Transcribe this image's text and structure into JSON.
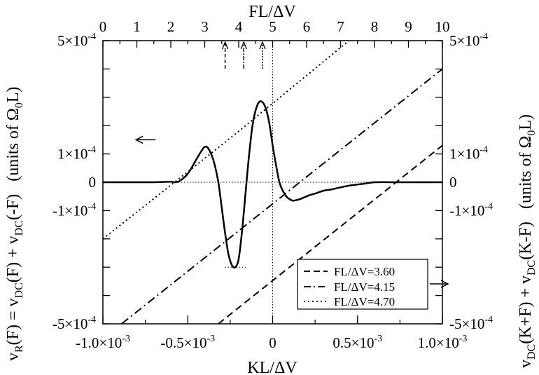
{
  "chart_data": {
    "type": "line",
    "title": "",
    "bottom_axis": {
      "label": "KL/ΔV",
      "range": [
        -0.001,
        0.001
      ],
      "ticks": [
        -0.001,
        -0.0005,
        0,
        0.0005,
        0.001
      ],
      "tick_labels": [
        "-1.0×10",
        "-0.5×10",
        "0",
        "0.5×10",
        "1.0×10"
      ],
      "tick_exponents": [
        "-3",
        "-3",
        "",
        "-3",
        "-3"
      ]
    },
    "top_axis": {
      "label": "FL/ΔV",
      "range": [
        0,
        10
      ],
      "ticks": [
        0,
        1,
        2,
        3,
        4,
        5,
        6,
        7,
        8,
        9,
        10
      ],
      "tick_labels": [
        "0",
        "1",
        "2",
        "3",
        "4",
        "5",
        "6",
        "7",
        "8",
        "9",
        "10"
      ]
    },
    "left_axis": {
      "label_parts": [
        "v",
        "R",
        "(F) = v",
        "DC",
        "(F) + v",
        "DC",
        "(-F)   (units of Ω",
        "0",
        "L)"
      ],
      "range": [
        -0.0005,
        0.0005
      ],
      "ticks": [
        0.0005,
        0.0001,
        0,
        -0.0001,
        -0.0005
      ],
      "tick_labels": [
        "5×10",
        "1×10",
        "0",
        "-1×10",
        "-5×10"
      ],
      "tick_exponents": [
        "-4",
        "-4",
        "",
        "-4",
        "-4"
      ]
    },
    "right_axis": {
      "label_parts": [
        "v",
        "DC",
        "(K+F) + v",
        "DC",
        "(K-F)   (units of Ω",
        "0",
        "L)"
      ],
      "range": [
        -0.0005,
        0.0005
      ],
      "ticks": [
        0.0005,
        0.0001,
        0,
        -0.0001,
        -0.0005
      ],
      "tick_labels": [
        "5×10",
        "1×10",
        "0",
        "-1×10",
        "-5×10"
      ],
      "tick_exponents": [
        "-4",
        "-4",
        "",
        "-4",
        "-4"
      ]
    },
    "solid_curve": {
      "x": [
        -0.001,
        -0.0008,
        -0.0007,
        -0.00065,
        -0.0006,
        -0.00058,
        -0.00055,
        -0.0005,
        -0.00045,
        -0.00042,
        -0.0004,
        -0.00038,
        -0.00035,
        -0.00032,
        -0.0003,
        -0.00028,
        -0.00026,
        -0.00024,
        -0.00022,
        -0.0002,
        -0.00018,
        -0.00016,
        -0.00014,
        -0.00012,
        -0.0001,
        -8e-05,
        -6e-05,
        -4e-05,
        -2e-05,
        0,
        2e-05,
        4e-05,
        6e-05,
        8e-05,
        0.0001,
        0.00012,
        0.00014,
        0.00016,
        0.00018,
        0.0002,
        0.00022,
        0.00025,
        0.0003,
        0.00035,
        0.0004,
        0.00045,
        0.0005,
        0.00055,
        0.0006,
        0.0007,
        0.0008,
        0.0009,
        0.001
      ],
      "y": [
        0,
        0,
        0,
        1e-06,
        2e-06,
        0,
        4e-06,
        3e-05,
        8e-05,
        0.00011,
        0.000125,
        0.00012,
        8e-05,
        0,
        -9e-05,
        -0.00018,
        -0.000255,
        -0.000293,
        -0.0003,
        -0.00027,
        -0.00017,
        -4e-05,
        9e-05,
        0.000195,
        0.000255,
        0.000283,
        0.000283,
        0.00026,
        0.00021,
        0.00013,
        6e-05,
        0,
        -3e-05,
        -5e-05,
        -6e-05,
        -6.5e-05,
        -6.3e-05,
        -6e-05,
        -5.5e-05,
        -5e-05,
        -4.5e-05,
        -4e-05,
        -3e-05,
        -2.5e-05,
        -1.8e-05,
        -1.2e-05,
        -8e-06,
        -4e-06,
        0,
        0,
        0,
        0,
        0
      ]
    },
    "series": [
      {
        "name": "FL/ΔV=3.60",
        "style": "dashed",
        "x": [
          -0.00032,
          0.001
        ],
        "y": [
          -0.0005,
          0.00013
        ]
      },
      {
        "name": "FL/ΔV=4.15",
        "style": "dash-dot",
        "x": [
          -0.00089,
          0.001
        ],
        "y": [
          -0.0005,
          0.0004
        ]
      },
      {
        "name": "FL/ΔV=4.70",
        "style": "dotted",
        "x": [
          -0.001,
          -0.00043,
          -0.0002,
          0.00045
        ],
        "y": [
          -0.0002,
          7e-05,
          0.00018,
          0.0005
        ]
      }
    ],
    "guide_lines": {
      "zero_line_y": 0,
      "vertical_x": 0,
      "min_marker": {
        "x1": -0.00028,
        "x2": -0.00016,
        "y": -0.0003
      }
    },
    "top_arrows_fl": [
      3.6,
      4.15,
      4.7
    ],
    "arrow_left": {
      "x": -0.00069,
      "y": 0.00015
    },
    "arrow_right_legend": true,
    "legend": {
      "position": "bottom-right"
    },
    "grid": false
  }
}
